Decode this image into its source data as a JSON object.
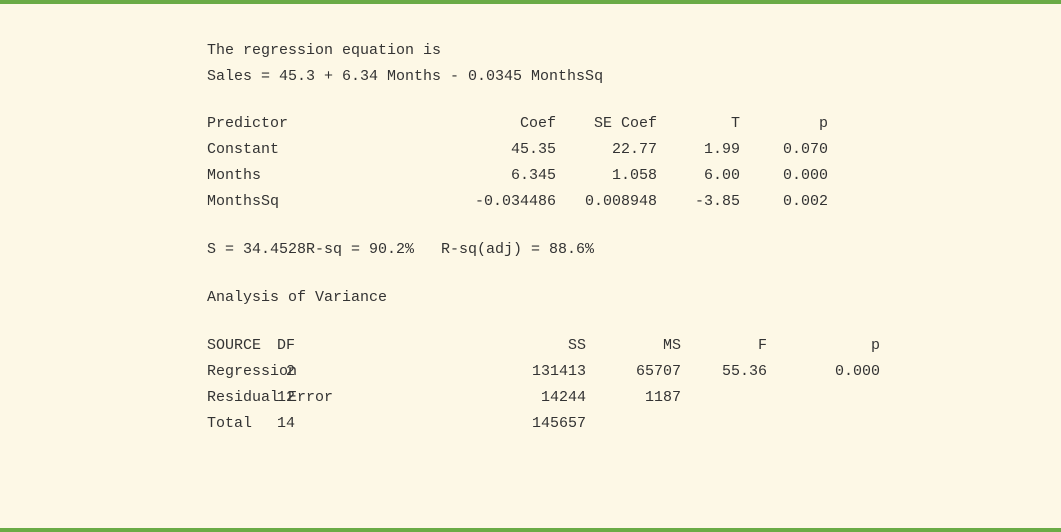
{
  "equation_heading": "The regression equation is",
  "equation": "Sales = 45.3 + 6.34 Months - 0.0345 MonthsSq",
  "coef_table": {
    "header": [
      "Predictor",
      "Coef",
      "SE Coef",
      "T",
      "p"
    ],
    "rows": [
      [
        "Constant",
        "45.35",
        "22.77",
        "1.99",
        "0.070"
      ],
      [
        "Months",
        "6.345",
        "1.058",
        "6.00",
        "0.000"
      ],
      [
        "MonthsSq",
        "-0.034486",
        "0.008948",
        "-3.85",
        "0.002"
      ]
    ]
  },
  "summary": [
    "S = 34.4528",
    "R-sq = 90.2%",
    "R-sq(adj) = 88.6%"
  ],
  "anova_heading": "Analysis of Variance",
  "anova_table": {
    "header": [
      "SOURCE",
      "DF",
      "SS",
      "MS",
      "F",
      "p"
    ],
    "rows": [
      [
        "Regression",
        "2",
        "131413",
        "65707",
        "55.36",
        "0.000"
      ],
      [
        "Residual Error",
        "12",
        "14244",
        "1187"
      ],
      [
        "Total",
        "14",
        "145657"
      ]
    ]
  }
}
